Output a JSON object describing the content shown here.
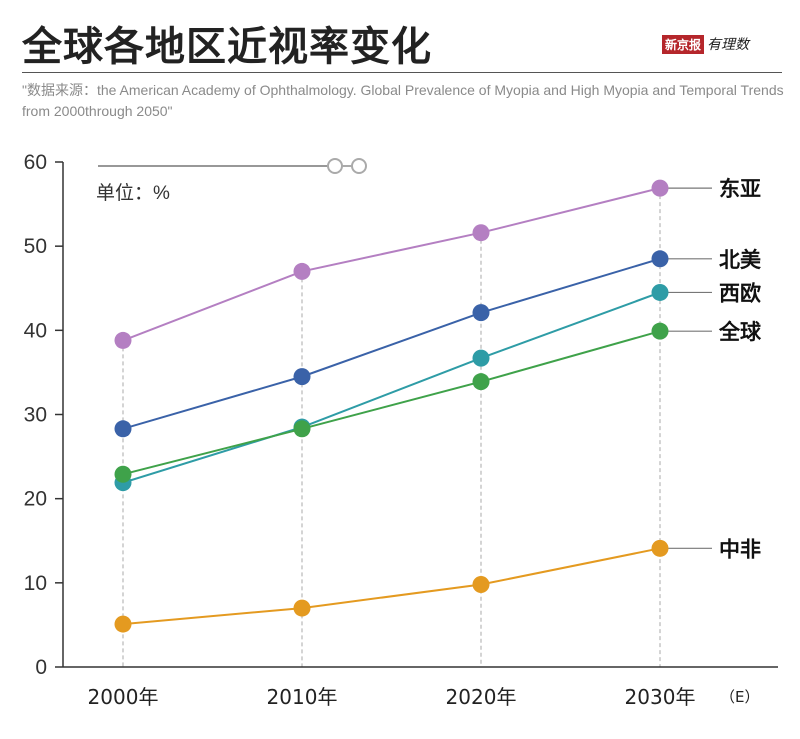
{
  "header": {
    "title": "全球各地区近视率变化",
    "logo_text": "新京报 有理数",
    "logo_part1": "新京报",
    "logo_part2": "有理数",
    "source": "\"数据来源：the American Academy of Ophthalmology. Global Prevalence of Myopia and High Myopia and Temporal Trends from 2000through 2050\""
  },
  "chart_data": {
    "type": "line",
    "title": "全球各地区近视率变化",
    "unit_label": "单位：%",
    "x": [
      "2000年",
      "2010年",
      "2020年",
      "2030年"
    ],
    "x_note": "（E）",
    "ylim": [
      0,
      60
    ],
    "yticks": [
      0,
      10,
      20,
      30,
      40,
      50,
      60
    ],
    "grid": "vertical dashed lines at data points",
    "legend": "direct labels at right end",
    "series": [
      {
        "name": "东亚",
        "color": "#b47fc2",
        "values": [
          38.8,
          47.0,
          51.6,
          56.9
        ]
      },
      {
        "name": "北美",
        "color": "#3a62a8",
        "values": [
          28.3,
          34.5,
          42.1,
          48.5
        ]
      },
      {
        "name": "西欧",
        "color": "#2e9ca6",
        "values": [
          21.9,
          28.5,
          36.7,
          44.5
        ]
      },
      {
        "name": "全球",
        "color": "#3fa24a",
        "values": [
          22.9,
          28.3,
          33.9,
          39.9
        ]
      },
      {
        "name": "中非",
        "color": "#e49a20",
        "values": [
          5.1,
          7.0,
          9.8,
          14.1
        ]
      }
    ]
  }
}
